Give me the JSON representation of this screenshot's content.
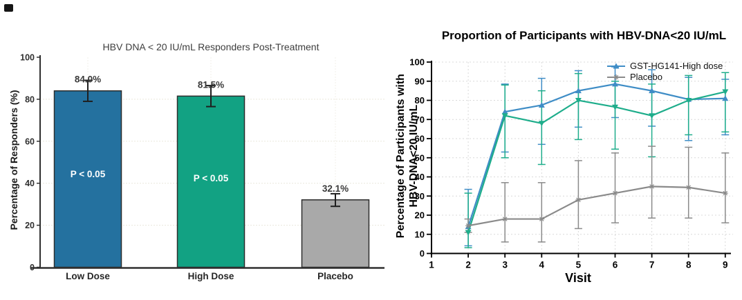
{
  "figure": {
    "background": "#ffffff"
  },
  "chart_data": [
    {
      "type": "bar",
      "title": "HBV DNA < 20 IU/mL Responders Post-Treatment",
      "ylabel": "Percentage of Responders (%)",
      "categories": [
        "Low Dose",
        "High Dose",
        "Placebo"
      ],
      "values": [
        84.0,
        81.5,
        32.1
      ],
      "value_labels": [
        "84.0%",
        "81.5%",
        "32.1%"
      ],
      "error_low": [
        79,
        76.5,
        29
      ],
      "error_high": [
        89,
        86.5,
        35
      ],
      "bar_annotations": [
        "P < 0.05",
        "P < 0.05",
        ""
      ],
      "bar_colors": [
        "#24719f",
        "#12a283",
        "#a9a9a9"
      ],
      "ylim": [
        0,
        100
      ],
      "yticks": [
        0,
        20,
        40,
        60,
        80,
        100
      ],
      "grid": "horizontal-dotted"
    },
    {
      "type": "line",
      "title": "Proportion of Participants with HBV-DNA<20 IU/mL",
      "ylabel_line1": "Percentage of Participants with",
      "ylabel_line2": "HBV-DNA<20 IU/mL",
      "xlabel": "Visit",
      "x": [
        2,
        3,
        4,
        5,
        6,
        7,
        8,
        9
      ],
      "xticks": [
        1,
        2,
        3,
        4,
        5,
        6,
        7,
        8,
        9
      ],
      "ylim": [
        0,
        100
      ],
      "yticks": [
        0,
        10,
        20,
        30,
        40,
        50,
        60,
        70,
        80,
        90,
        100
      ],
      "legend_position": "top-right-inside",
      "series": [
        {
          "name": "GST-HG141-High dose",
          "color": "#3f8dc6",
          "marker": "triangle-up",
          "in_legend": true,
          "values": [
            14,
            74,
            77.5,
            85,
            88.5,
            85,
            80.5,
            81
          ],
          "err_low": [
            4,
            53,
            57,
            66,
            71,
            66.5,
            59,
            62
          ],
          "err_high": [
            33.5,
            88.5,
            91.5,
            95.5,
            97.5,
            96,
            92,
            91
          ]
        },
        {
          "name": "",
          "color": "#1ead8b",
          "marker": "triangle-down",
          "in_legend": false,
          "values": [
            11,
            72,
            68,
            80,
            76.5,
            72,
            80,
            84.5
          ],
          "err_low": [
            3,
            50,
            46.5,
            59.5,
            54.5,
            50.5,
            62,
            63.5
          ],
          "err_high": [
            31.5,
            88,
            85,
            94,
            90,
            88.5,
            93,
            94.5
          ]
        },
        {
          "name": "Placebo",
          "color": "#8a8a8a",
          "marker": "star",
          "in_legend": true,
          "values": [
            14.5,
            18,
            18,
            28,
            31.5,
            35,
            34.5,
            31.5
          ],
          "err_low": [
            11,
            6,
            6,
            13,
            16,
            18.5,
            18.5,
            16
          ],
          "err_high": [
            18,
            37,
            37,
            48.5,
            52.5,
            56,
            55.5,
            52.5
          ]
        }
      ]
    }
  ]
}
